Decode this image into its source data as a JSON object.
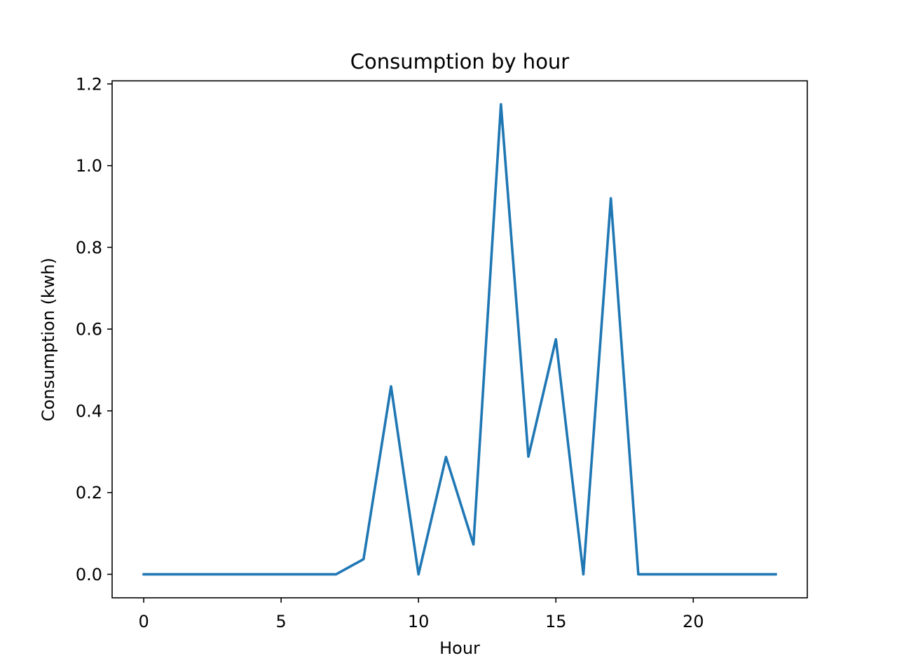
{
  "chart_data": {
    "type": "line",
    "title": "Consumption by hour",
    "xlabel": "Hour",
    "ylabel": "Consumption (kwh)",
    "xlim": [
      -1.15,
      24.15
    ],
    "ylim": [
      -0.0575,
      1.2075
    ],
    "xticks": [
      0,
      5,
      10,
      15,
      20
    ],
    "xtick_labels": [
      "0",
      "5",
      "10",
      "15",
      "20"
    ],
    "yticks": [
      0.0,
      0.2,
      0.4,
      0.6,
      0.8,
      1.0,
      1.2
    ],
    "ytick_labels": [
      "0.0",
      "0.2",
      "0.4",
      "0.6",
      "0.8",
      "1.0",
      "1.2"
    ],
    "grid": false,
    "series": [
      {
        "color": "#1f77b4",
        "x": [
          0,
          1,
          2,
          3,
          4,
          5,
          6,
          7,
          8,
          9,
          10,
          11,
          12,
          13,
          14,
          15,
          16,
          17,
          18,
          19,
          20,
          21,
          22,
          23
        ],
        "y": [
          0,
          0,
          0,
          0,
          0,
          0,
          0,
          0,
          0.037,
          0.46,
          0,
          0.287,
          0.073,
          1.15,
          0.288,
          0.575,
          0,
          0.92,
          0,
          0,
          0,
          0,
          0,
          0
        ]
      }
    ]
  }
}
